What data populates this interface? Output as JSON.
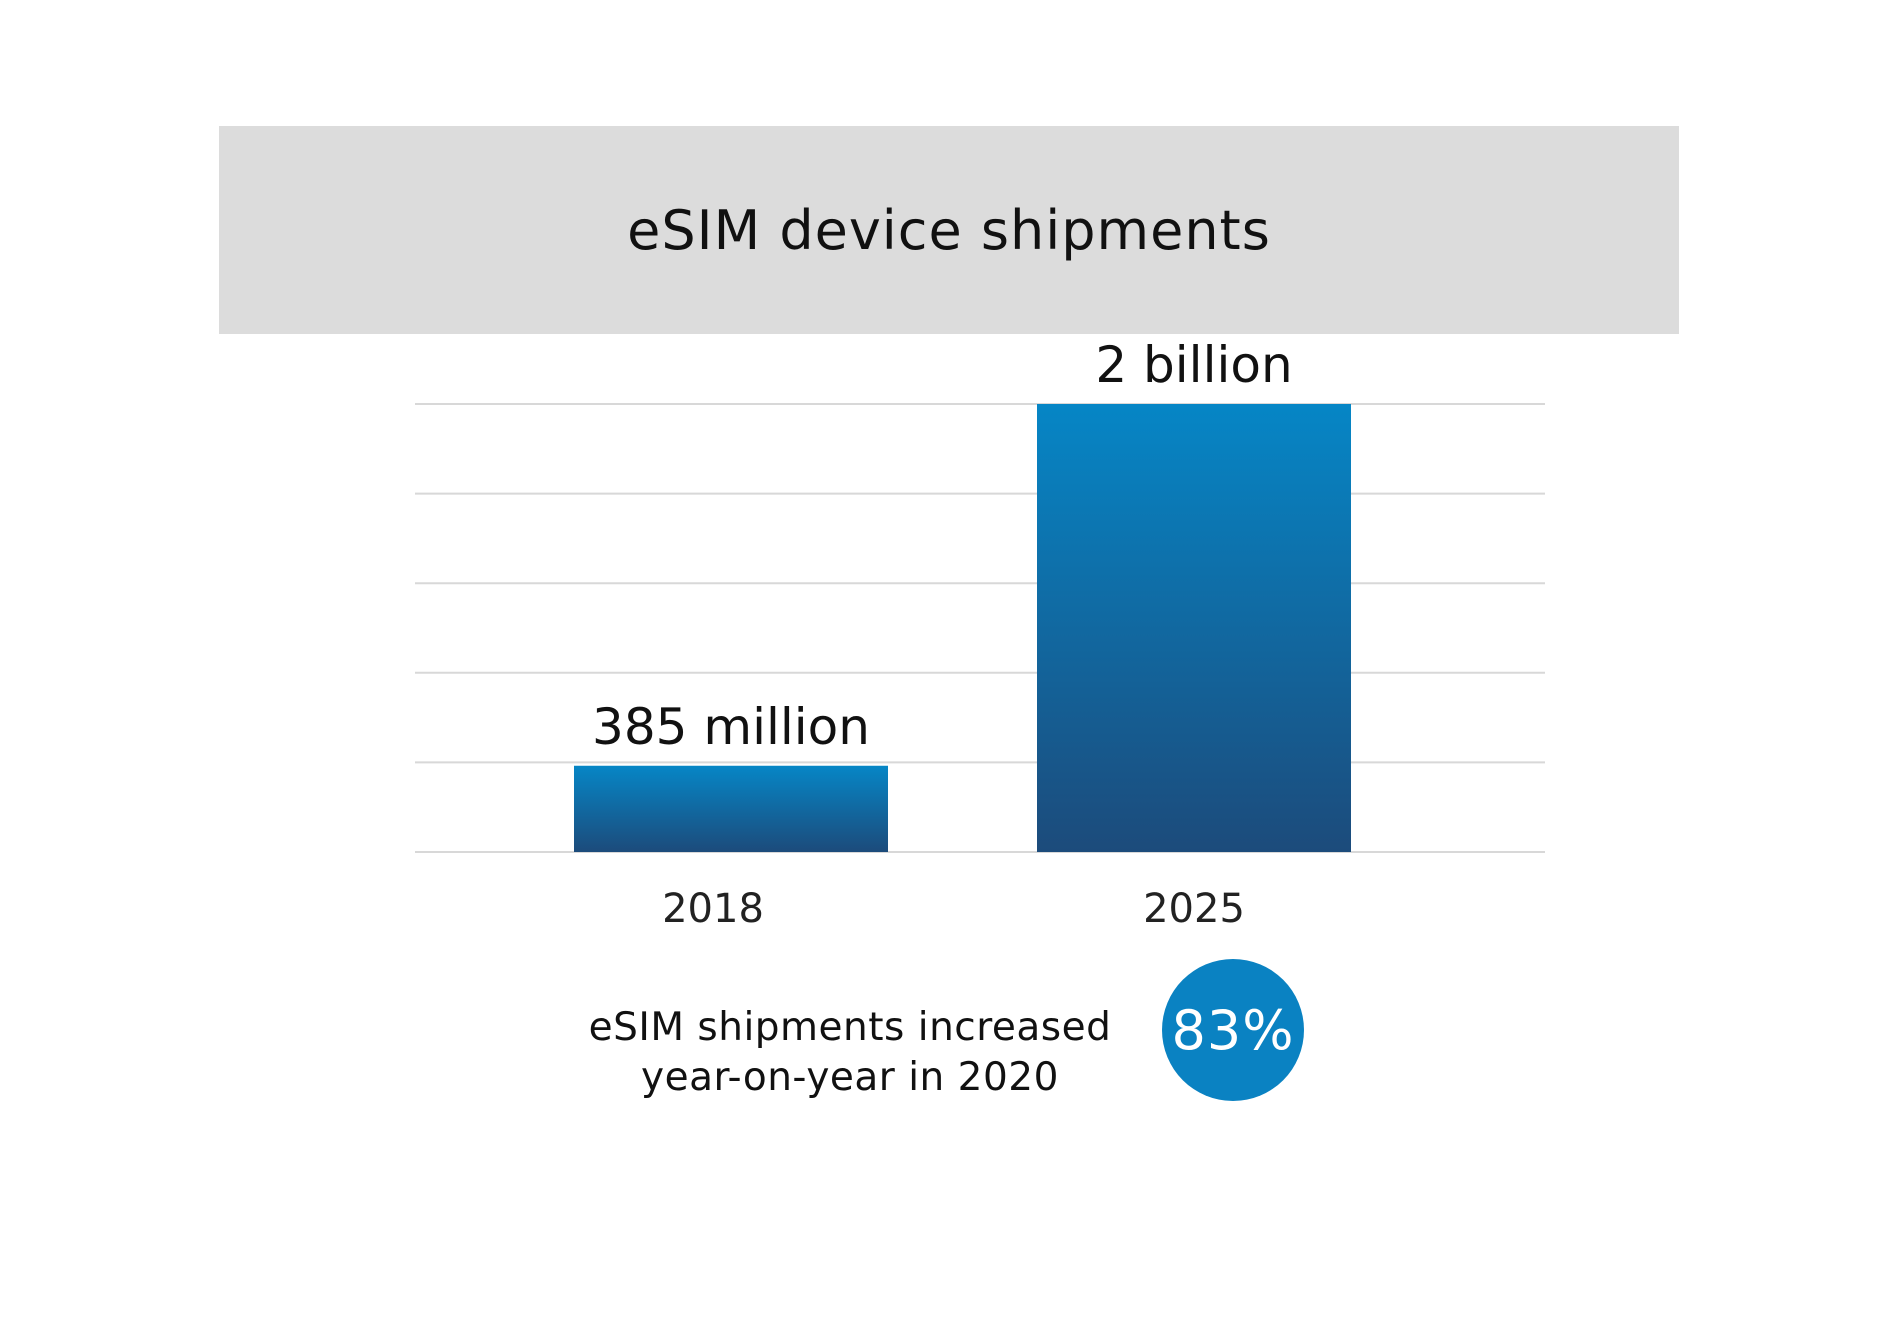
{
  "chart_data": {
    "type": "bar",
    "title": "eSIM device shipments",
    "xlabel": "",
    "ylabel": "",
    "unit": "million devices",
    "categories": [
      "2018",
      "2025"
    ],
    "values": [
      385,
      2000
    ],
    "data_labels": [
      "385 million",
      "2 billion"
    ],
    "ylim": [
      0,
      2000
    ],
    "grid": true,
    "legend": "none",
    "colors": {
      "bar_top": "#0686c6",
      "bar_bottom": "#1c4b7b",
      "grid": "#d8d8d8"
    }
  },
  "callout": {
    "line1": "eSIM shipments increased",
    "line2": "year-on-year in 2020",
    "badge": "83%",
    "badge_color": "#0a82c2"
  }
}
